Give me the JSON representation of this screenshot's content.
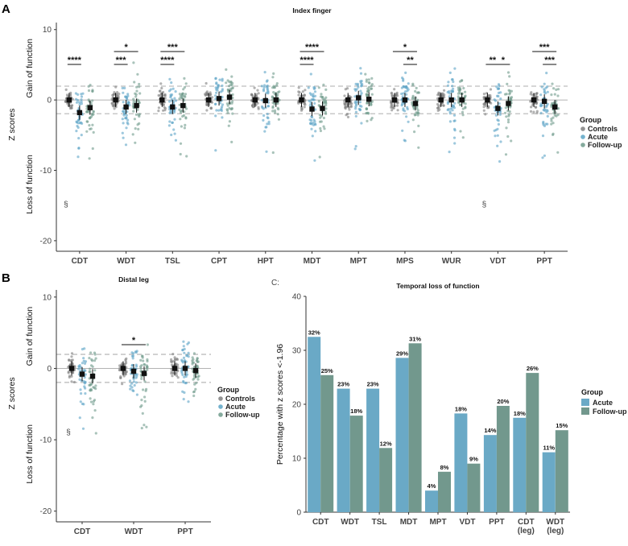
{
  "colors": {
    "controls": "#7f7f7f",
    "acute": "#5ba4c6",
    "followup": "#6f9b8c",
    "bar_acute": "#6aa9c6",
    "bar_followup": "#72988d"
  },
  "panels": {
    "A": {
      "letter": "A"
    },
    "B": {
      "letter": "B"
    },
    "C": {
      "letter": "C:"
    }
  },
  "chart_data": [
    {
      "type": "scatter",
      "panel": "A",
      "title": "Index finger",
      "ylabel": "Z scores",
      "ylabel_gain": "Gain of function",
      "ylabel_loss": "Loss of function",
      "ylim": [
        -21.5,
        11
      ],
      "yticks": [
        10,
        0,
        -10,
        -20
      ],
      "reference_lines": [
        1.96,
        -1.96
      ],
      "legend": {
        "title": "Group",
        "items": [
          "Controls",
          "Acute",
          "Follow-up"
        ]
      },
      "categories": [
        "CDT",
        "WDT",
        "TSL",
        "CPT",
        "HPT",
        "MDT",
        "MPT",
        "MPS",
        "WUR",
        "VDT",
        "PPT"
      ],
      "series": [
        {
          "name": "Controls",
          "means": [
            0,
            0,
            0,
            0,
            0,
            0,
            0,
            0,
            0,
            0,
            0
          ]
        },
        {
          "name": "Acute",
          "means": [
            -1.8,
            -1.0,
            -1.0,
            0.2,
            -0.1,
            -1.3,
            0.3,
            0.0,
            0.0,
            -1.2,
            -0.2
          ]
        },
        {
          "name": "Follow-up",
          "means": [
            -1.1,
            -0.8,
            -0.8,
            0.4,
            0.0,
            -1.2,
            0.1,
            -0.5,
            0.0,
            -0.5,
            -1.0
          ]
        }
      ],
      "significance": [
        {
          "category": "CDT",
          "from": "Controls",
          "to": "Acute",
          "label": "****"
        },
        {
          "category": "WDT",
          "from": "Controls",
          "to": "Acute",
          "label": "***"
        },
        {
          "category": "WDT",
          "from": "Controls",
          "to": "Follow-up",
          "label": "*"
        },
        {
          "category": "TSL",
          "from": "Controls",
          "to": "Acute",
          "label": "****"
        },
        {
          "category": "TSL",
          "from": "Controls",
          "to": "Follow-up",
          "label": "***"
        },
        {
          "category": "MDT",
          "from": "Controls",
          "to": "Acute",
          "label": "****"
        },
        {
          "category": "MDT",
          "from": "Controls",
          "to": "Follow-up",
          "label": "****"
        },
        {
          "category": "MPS",
          "from": "Controls",
          "to": "Follow-up",
          "label": "*"
        },
        {
          "category": "MPS",
          "from": "Acute",
          "to": "Follow-up",
          "label": "**"
        },
        {
          "category": "VDT",
          "from": "Controls",
          "to": "Acute",
          "label": "**"
        },
        {
          "category": "VDT",
          "from": "Acute",
          "to": "Follow-up",
          "label": "*"
        },
        {
          "category": "PPT",
          "from": "Controls",
          "to": "Follow-up",
          "label": "***"
        },
        {
          "category": "PPT",
          "from": "Acute",
          "to": "Follow-up",
          "label": "***"
        }
      ],
      "annotations": [
        {
          "category": "CDT",
          "y": -15.2,
          "text": "§"
        },
        {
          "category": "VDT",
          "y": -15.2,
          "text": "§"
        }
      ]
    },
    {
      "type": "scatter",
      "panel": "B",
      "title": "Distal leg",
      "ylabel": "Z scores",
      "ylabel_gain": "Gain of function",
      "ylabel_loss": "Loss of function",
      "ylim": [
        -21.5,
        11
      ],
      "yticks": [
        10,
        0,
        -10,
        -20
      ],
      "reference_lines": [
        1.96,
        -1.96
      ],
      "legend": {
        "title": "Group",
        "items": [
          "Controls",
          "Acute",
          "Follow-up"
        ]
      },
      "categories": [
        "CDT",
        "WDT",
        "PPT"
      ],
      "series": [
        {
          "name": "Controls",
          "means": [
            0,
            0,
            0
          ]
        },
        {
          "name": "Acute",
          "means": [
            -0.8,
            -0.4,
            0.0
          ]
        },
        {
          "name": "Follow-up",
          "means": [
            -1.1,
            -0.7,
            -0.3
          ]
        }
      ],
      "significance": [
        {
          "category": "WDT",
          "from": "Controls",
          "to": "Follow-up",
          "label": "*"
        }
      ],
      "annotations": [
        {
          "category": "CDT",
          "y": -9.3,
          "text": "§"
        }
      ]
    },
    {
      "type": "bar",
      "panel": "C",
      "title": "Temporal loss of function",
      "ylabel": "Percentage with z scores <-1.96",
      "ylim": [
        0,
        40
      ],
      "yticks": [
        0,
        10,
        20,
        30,
        40
      ],
      "legend": {
        "title": "Group",
        "items": [
          "Acute",
          "Follow-up"
        ]
      },
      "categories": [
        "CDT",
        "WDT",
        "TSL",
        "MDT",
        "MPT",
        "VDT",
        "PPT",
        "CDT (leg)",
        "WDT (leg)"
      ],
      "series": [
        {
          "name": "Acute",
          "values": [
            32,
            23,
            23,
            29,
            4,
            18,
            14,
            18,
            11
          ]
        },
        {
          "name": "Follow-up",
          "values": [
            25,
            18,
            12,
            31,
            8,
            9,
            20,
            26,
            15
          ]
        }
      ],
      "bar_heights": {
        "Acute": [
          32.5,
          22.9,
          22.9,
          28.6,
          4.0,
          18.3,
          14.3,
          17.5,
          11.1
        ],
        "Follow-up": [
          25.4,
          17.9,
          11.9,
          31.3,
          7.5,
          9.0,
          19.7,
          25.8,
          15.2
        ]
      },
      "value_labels": {
        "Acute": [
          "32%",
          "23%",
          "23%",
          "29%",
          "4%",
          "18%",
          "14%",
          "18%",
          "11%"
        ],
        "Follow-up": [
          "25%",
          "18%",
          "12%",
          "31%",
          "8%",
          "9%",
          "20%",
          "26%",
          "15%"
        ]
      }
    }
  ]
}
